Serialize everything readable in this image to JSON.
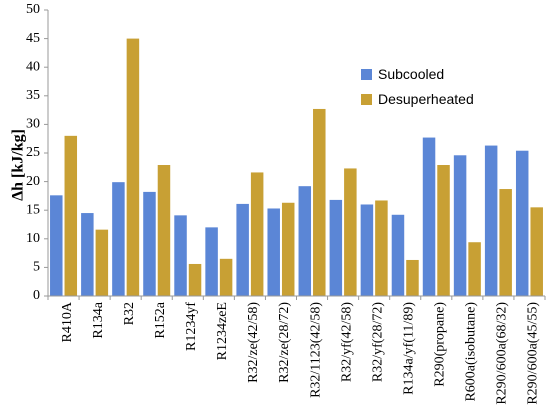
{
  "chart_data": {
    "type": "bar",
    "title": "",
    "xlabel": "",
    "ylabel": "Δh [kJ/kg]",
    "ylim": [
      0,
      50
    ],
    "yticks": [
      0,
      5,
      10,
      15,
      20,
      25,
      30,
      35,
      40,
      45,
      50
    ],
    "grid": false,
    "legend_position": "upper-right",
    "categories": [
      "R410A",
      "R134a",
      "R32",
      "R152a",
      "R1234yf",
      "R1234zeE",
      "R32/ze(42/58)",
      "R32/ze(28/72)",
      "R32/1123(42/58)",
      "R32/yf(42/58)",
      "R32/yf(28/72)",
      "R134a/yf(11/89)",
      "R290(propane)",
      "R600a(isobutane)",
      "R290/600a(68/32)",
      "R290/600a(45/55)"
    ],
    "series": [
      {
        "name": "Subcooled",
        "color": "#5b86d6",
        "values": [
          17.6,
          14.5,
          19.9,
          18.2,
          14.1,
          12.0,
          16.1,
          15.3,
          19.2,
          16.8,
          16.0,
          14.2,
          27.7,
          24.6,
          26.3,
          25.4
        ]
      },
      {
        "name": "Desuperheated",
        "color": "#c8a034",
        "values": [
          28.0,
          11.6,
          45.0,
          22.9,
          5.6,
          6.5,
          21.6,
          16.3,
          32.7,
          22.3,
          16.7,
          6.3,
          22.9,
          9.4,
          18.7,
          15.5
        ]
      }
    ]
  }
}
